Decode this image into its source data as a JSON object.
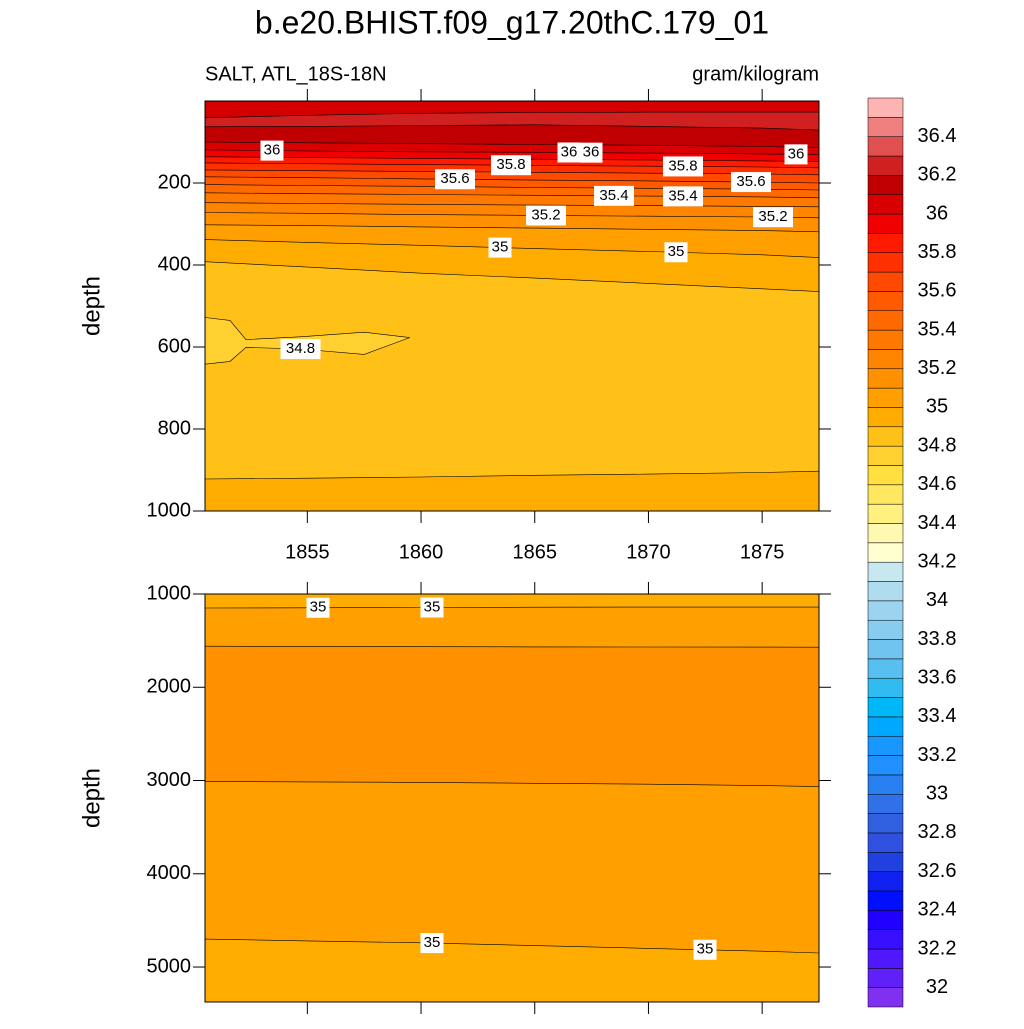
{
  "title": "b.e20.BHIST.f09_g17.20thC.179_01",
  "left_subtitle": "SALT, ATL_18S-18N",
  "right_subtitle": "gram/kilogram",
  "colorbar": {
    "labels": [
      32,
      32.2,
      32.4,
      32.6,
      32.8,
      33,
      33.2,
      33.4,
      33.6,
      33.8,
      34,
      34.2,
      34.4,
      34.6,
      34.8,
      35,
      35.2,
      35.4,
      35.6,
      35.8,
      36,
      36.2,
      36.4
    ],
    "colors": [
      "#8030f0",
      "#6020f8",
      "#5018ff",
      "#3810ff",
      "#2000ff",
      "#0010ff",
      "#1020f0",
      "#2040e0",
      "#3050e0",
      "#3060e0",
      "#3070e8",
      "#2880f0",
      "#2090ff",
      "#1898ff",
      "#00a8ff",
      "#00b8f8",
      "#30bcf0",
      "#58c0f0",
      "#70c4f0",
      "#88ccf0",
      "#9cd4f0",
      "#b0dcf0",
      "#c8e8f0",
      "#ffffd0",
      "#fff8b0",
      "#fff080",
      "#ffe860",
      "#ffe040",
      "#ffd030",
      "#ffc018",
      "#ffac00",
      "#ffa000",
      "#ff9000",
      "#ff8400",
      "#ff7800",
      "#ff6a00",
      "#ff5a00",
      "#ff4a00",
      "#ff3000",
      "#ff1a00",
      "#f00000",
      "#d80000",
      "#c00000",
      "#d02020",
      "#e05050",
      "#f08080",
      "#ffb4b4"
    ]
  },
  "chart_data": [
    {
      "type": "contour",
      "ylabel": "depth",
      "x": [
        1850.5,
        1855,
        1860,
        1865,
        1870,
        1875,
        1877.5
      ],
      "xlim": [
        1850.5,
        1877.5
      ],
      "ylim": [
        0,
        1000
      ],
      "xticks": [
        1855,
        1860,
        1865,
        1870,
        1875
      ],
      "show_xtick_labels": true,
      "yticks": [
        200,
        400,
        600,
        800,
        1000
      ],
      "top_color": "#d40000",
      "contours": [
        {
          "level": 36.3,
          "depth": [
            41,
            35,
            30,
            28,
            27,
            27,
            27
          ],
          "fill": "#d02020"
        },
        {
          "level": 36.2,
          "depth": [
            63,
            62,
            60,
            58,
            62,
            66,
            71
          ],
          "fill": "#c00000"
        },
        {
          "level": 36.1,
          "depth": [
            100,
            102,
            104,
            106,
            108,
            111,
            114
          ],
          "fill": "#d80000"
        },
        {
          "level": 36,
          "depth": [
            119,
            122,
            124,
            125,
            127,
            129,
            131
          ],
          "fill": "#f00000"
        },
        {
          "level": 35.9,
          "depth": [
            136,
            138,
            140,
            142,
            144,
            146,
            148
          ],
          "fill": "#ff1a00"
        },
        {
          "level": 35.8,
          "depth": [
            151,
            153,
            155,
            157,
            159,
            161,
            163
          ],
          "fill": "#ff3000"
        },
        {
          "level": 35.7,
          "depth": [
            168,
            170,
            172,
            174,
            176,
            178,
            180
          ],
          "fill": "#ff4a00"
        },
        {
          "level": 35.6,
          "depth": [
            185,
            187,
            190,
            193,
            195,
            198,
            200
          ],
          "fill": "#ff5a00"
        },
        {
          "level": 35.5,
          "depth": [
            204,
            206,
            208,
            211,
            213,
            215,
            217
          ],
          "fill": "#ff6a00"
        },
        {
          "level": 35.4,
          "depth": [
            224,
            226,
            228,
            230,
            232,
            234,
            236
          ],
          "fill": "#ff7800"
        },
        {
          "level": 35.3,
          "depth": [
            248,
            250,
            252,
            254,
            255,
            257,
            258
          ],
          "fill": "#ff8400"
        },
        {
          "level": 35.2,
          "depth": [
            272,
            274,
            277,
            279,
            281,
            283,
            285
          ],
          "fill": "#ff9000"
        },
        {
          "level": 35.1,
          "depth": [
            302,
            304,
            307,
            310,
            313,
            316,
            319
          ],
          "fill": "#ffa000"
        },
        {
          "level": 35,
          "depth": [
            338,
            345,
            352,
            360,
            367,
            375,
            382
          ],
          "fill": "#ffac00"
        },
        {
          "level": 34.9,
          "depth": [
            392,
            405,
            420,
            432,
            445,
            458,
            465
          ],
          "fill": "#ffc018"
        },
        {
          "level": 34.8,
          "closed": true,
          "x": [
            1850.5,
            1851.6,
            1852.3,
            1854.7,
            1857.5,
            1859.5,
            1857.5,
            1854.7,
            1852.3,
            1851.6,
            1850.5
          ],
          "depth": [
            528,
            535,
            582,
            575,
            564,
            577,
            618,
            605,
            601,
            635,
            642
          ],
          "fill": "#ffd030"
        },
        {
          "level": 34.9,
          "depth": [
            922,
            920,
            917,
            913,
            910,
            906,
            903
          ],
          "fill": "#ffac00"
        }
      ]
    },
    {
      "type": "contour",
      "ylabel": "depth",
      "x": [
        1850.5,
        1855,
        1860,
        1865,
        1870,
        1875,
        1877.5
      ],
      "xlim": [
        1850.5,
        1877.5
      ],
      "ylim": [
        1000,
        5375
      ],
      "xticks": [
        1855,
        1860,
        1865,
        1870,
        1875
      ],
      "show_xtick_labels": false,
      "yticks": [
        1000,
        2000,
        3000,
        4000,
        5000
      ],
      "top_color": "#ffac00",
      "contours": [
        {
          "level": 35,
          "depth": [
            1150,
            1148,
            1145,
            1142,
            1140,
            1140,
            1140
          ],
          "fill": "#ffa000"
        },
        {
          "level": 35.1,
          "depth": [
            1560,
            1562,
            1565,
            1567,
            1568,
            1569,
            1570
          ],
          "fill": "#ff9000"
        },
        {
          "level": 35.1,
          "depth": [
            3010,
            3015,
            3020,
            3030,
            3040,
            3055,
            3065
          ],
          "fill": "#ffa000"
        },
        {
          "level": 35,
          "depth": [
            4700,
            4720,
            4740,
            4770,
            4800,
            4830,
            4850
          ],
          "fill": "#ffac00"
        }
      ]
    }
  ]
}
